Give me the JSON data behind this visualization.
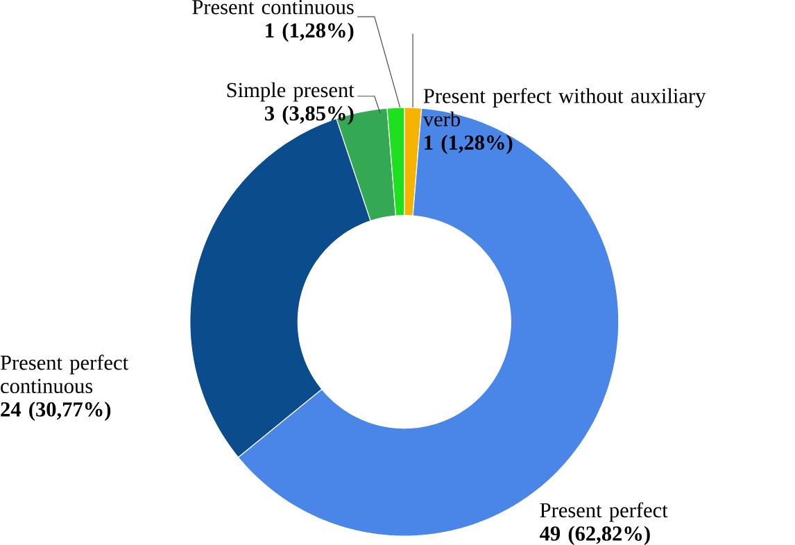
{
  "chart_data": {
    "type": "donut",
    "categories": [
      "Present perfect without auxiliary verb",
      "Present perfect",
      "Present perfect continuous",
      "Simple present",
      "Present continuous"
    ],
    "values": [
      1,
      49,
      24,
      3,
      1
    ],
    "colors": [
      "#f5b400",
      "#4a86e8",
      "#0b4d8c",
      "#34a853",
      "#1fe01f"
    ],
    "value_labels": [
      "1 (1,28%)",
      "49 (62,82%)",
      "24 (30,77%)",
      "3 (3,85%)",
      "1 (1,28%)"
    ]
  }
}
